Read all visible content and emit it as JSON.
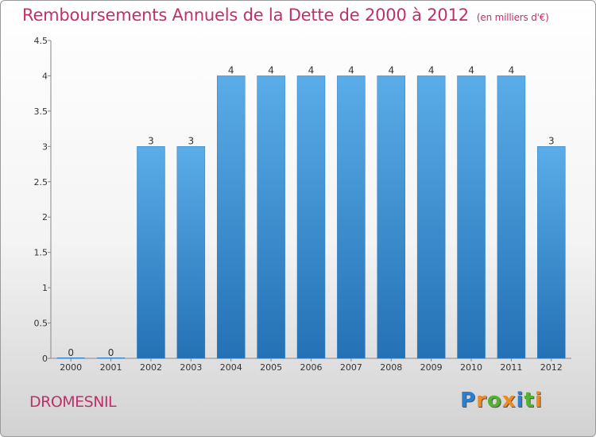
{
  "chart_data": {
    "type": "bar",
    "title": "Remboursements Annuels de la Dette de 2000 à 2012",
    "unit_label": "(en milliers d'€)",
    "categories": [
      "2000",
      "2001",
      "2002",
      "2003",
      "2004",
      "2005",
      "2006",
      "2007",
      "2008",
      "2009",
      "2010",
      "2011",
      "2012"
    ],
    "values": [
      0,
      0,
      3,
      3,
      4,
      4,
      4,
      4,
      4,
      4,
      4,
      4,
      3
    ],
    "y_ticks": [
      "0",
      "0.5",
      "1",
      "1.5",
      "2",
      "2.5",
      "3",
      "3.5",
      "4",
      "4.5"
    ],
    "ylim": [
      0,
      4.5
    ],
    "grid": false,
    "bar_color": "#3a8fd3"
  },
  "location": "DROMESNIL",
  "brand": {
    "letters": [
      "P",
      "r",
      "o",
      "x",
      "i",
      "t",
      "i"
    ],
    "colors": [
      "#2b7fd0",
      "#f08a1c",
      "#53b232",
      "#f08a1c",
      "#2b7fd0",
      "#53b232",
      "#f08a1c"
    ]
  }
}
